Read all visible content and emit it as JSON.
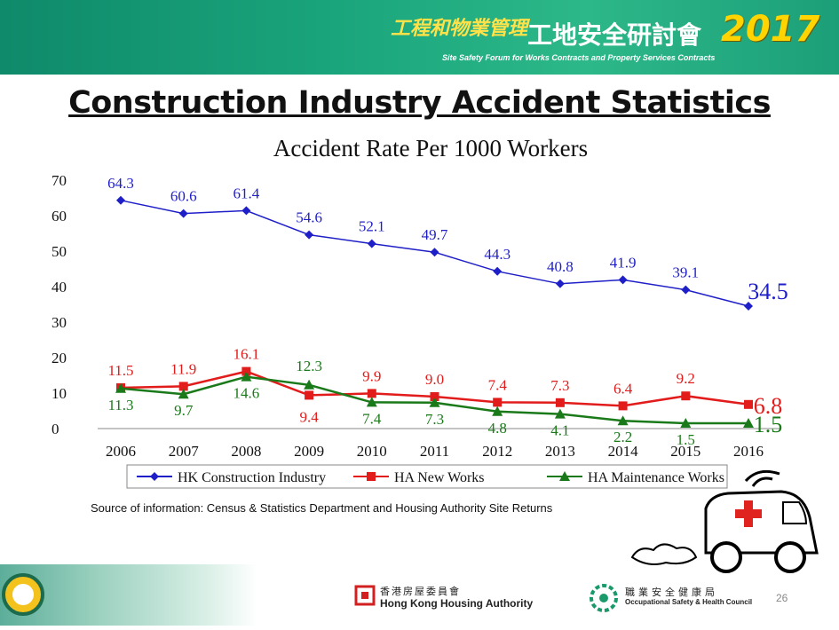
{
  "banner": {
    "cn_line1": "工程和物業管理",
    "cn_line2": "工地安全研討會",
    "year": "2017",
    "en": "Site Safety Forum for Works Contracts and Property Services Contracts"
  },
  "slide_title": "Construction Industry Accident Statistics",
  "chart_data": {
    "type": "line",
    "title": "Accident Rate Per 1000 Workers",
    "x": [
      "2006",
      "2007",
      "2008",
      "2009",
      "2010",
      "2011",
      "2012",
      "2013",
      "2014",
      "2015",
      "2016"
    ],
    "ylim": [
      0,
      70
    ],
    "yticks": [
      "0",
      "10",
      "20",
      "30",
      "40",
      "50",
      "60",
      "70"
    ],
    "grid": false,
    "legend_position": "bottom",
    "series": [
      {
        "name": "HK Construction Industry",
        "color": "#1f1fc8",
        "marker": "diamond",
        "values": [
          64.3,
          60.6,
          61.4,
          54.6,
          52.1,
          49.7,
          44.3,
          40.8,
          41.9,
          39.1,
          34.5
        ],
        "labels": [
          "64.3",
          "60.6",
          "61.4",
          "54.6",
          "52.1",
          "49.7",
          "44.3",
          "40.8",
          "41.9",
          "39.1",
          "34.5"
        ]
      },
      {
        "name": "HA New Works",
        "color": "#e21b1b",
        "marker": "square",
        "values": [
          11.5,
          11.9,
          16.1,
          9.4,
          9.9,
          9.0,
          7.4,
          7.3,
          6.4,
          9.2,
          6.8
        ],
        "labels": [
          "11.5",
          "11.9",
          "16.1",
          "9.4",
          "9.9",
          "9.0",
          "7.4",
          "7.3",
          "6.4",
          "9.2",
          "6.8"
        ]
      },
      {
        "name": "HA Maintenance Works",
        "color": "#1a7a1a",
        "marker": "triangle",
        "values": [
          11.3,
          9.7,
          14.6,
          12.3,
          7.4,
          7.3,
          4.8,
          4.1,
          2.2,
          1.5,
          1.5
        ],
        "labels": [
          "11.3",
          "9.7",
          "14.6",
          "12.3",
          "7.4",
          "7.3",
          "4.8",
          "4.1",
          "2.2",
          "1.5",
          "1.5"
        ]
      }
    ]
  },
  "source": "Source of information: Census & Statistics Department and Housing Authority Site Returns",
  "footer": {
    "hkha_cn": "香港房屋委員會",
    "hkha_en": "Hong Kong Housing Authority",
    "oshc_cn": "職業安全健康局",
    "oshc_en": "Occupational Safety & Health Council",
    "page": "26"
  }
}
